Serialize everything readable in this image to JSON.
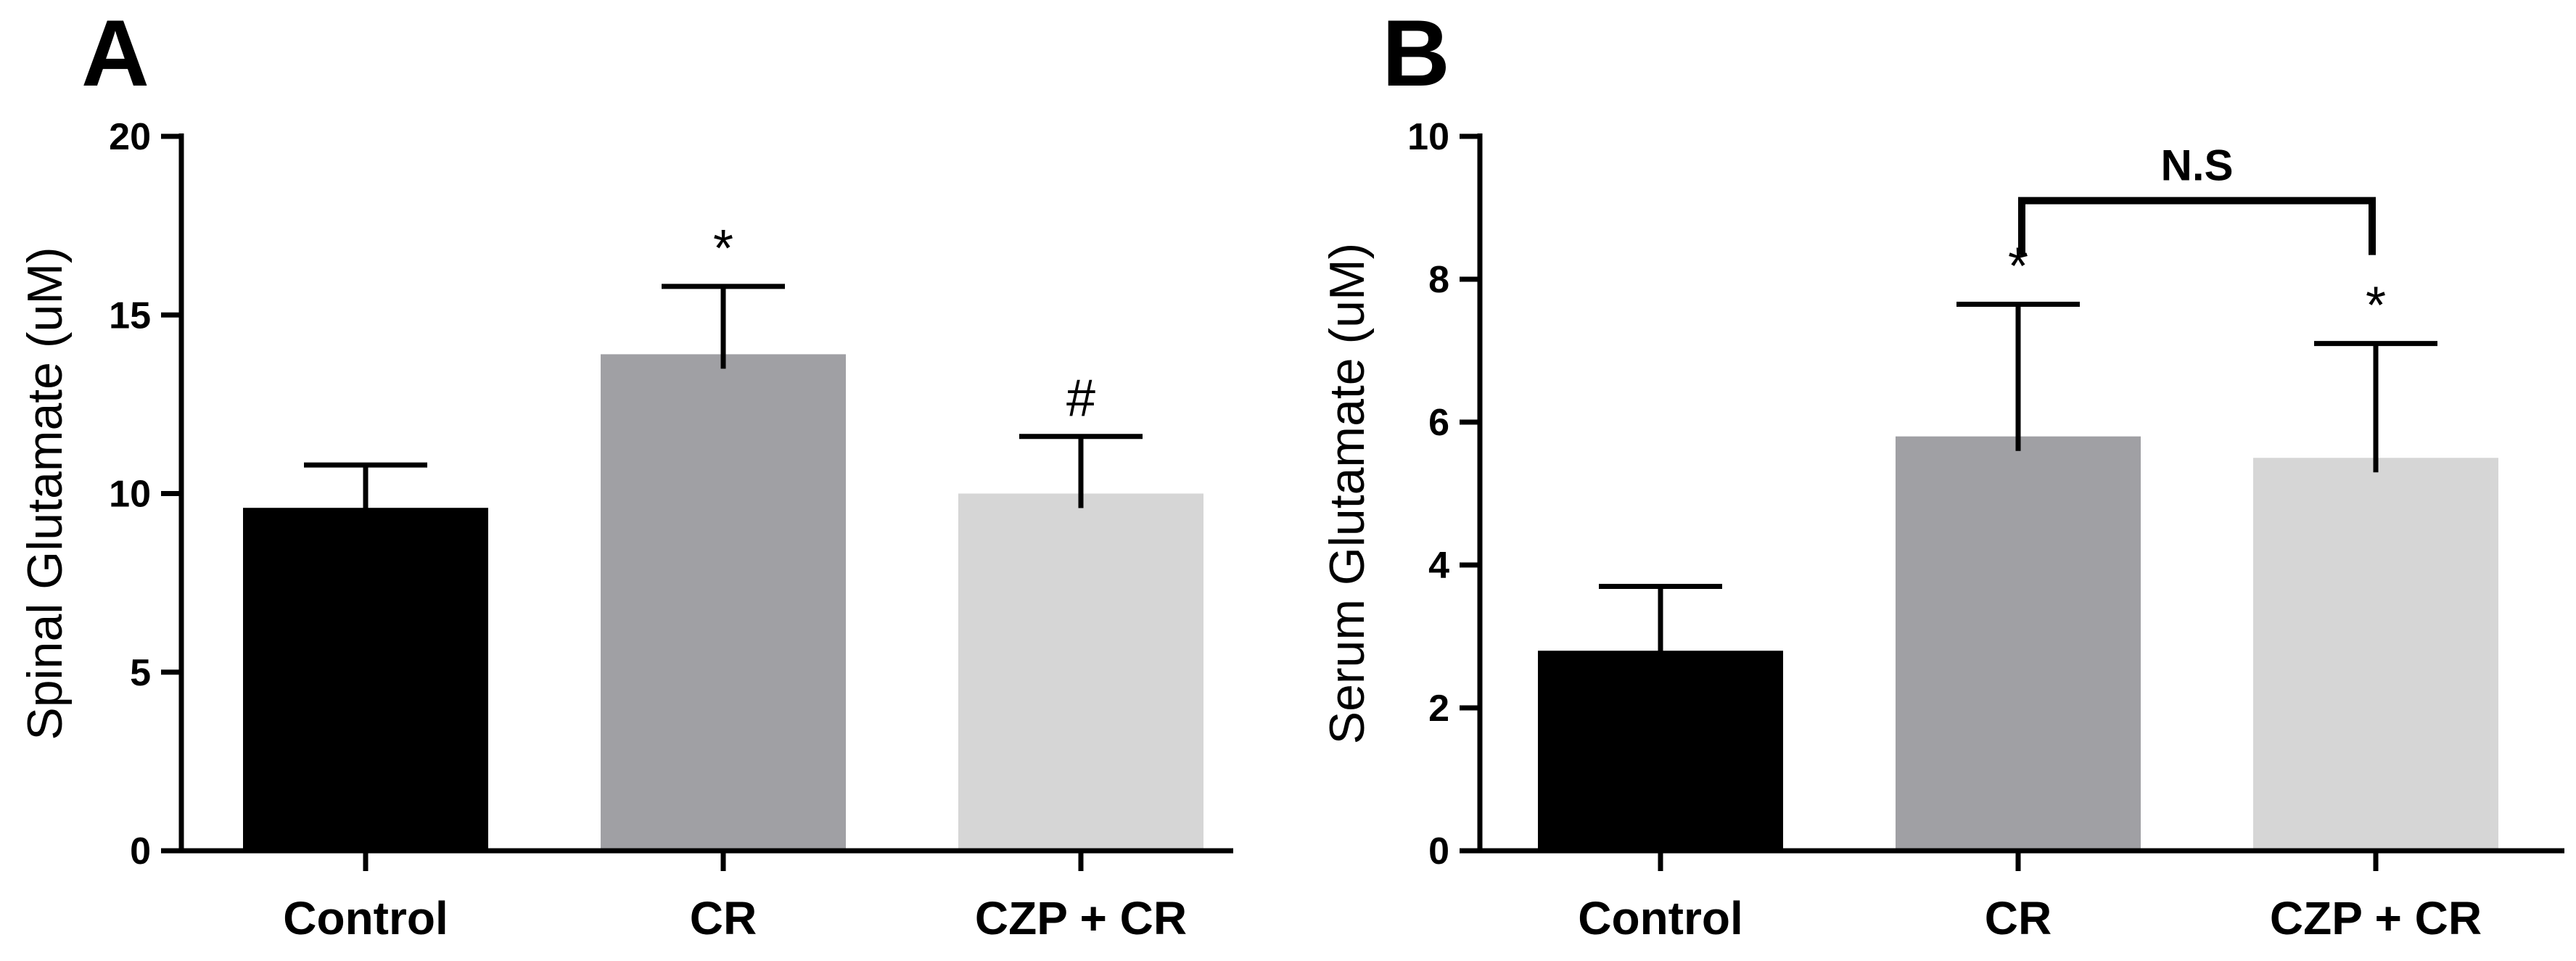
{
  "chart_data": [
    {
      "type": "bar",
      "panel": "A",
      "title": "",
      "xlabel": "",
      "ylabel": "Spinal Glutamate (uM)",
      "ylim": [
        0,
        20
      ],
      "yticks": [
        0,
        5,
        10,
        15,
        20
      ],
      "categories": [
        "Control",
        "CR",
        "CZP + CR"
      ],
      "values": [
        9.6,
        13.9,
        10.0
      ],
      "errors": [
        1.2,
        1.9,
        1.6
      ],
      "colors": [
        "#000000",
        "#a0a0a4",
        "#d6d6d6"
      ],
      "annotations": [
        "",
        "*",
        "#"
      ],
      "bracket": null
    },
    {
      "type": "bar",
      "panel": "B",
      "title": "",
      "xlabel": "",
      "ylabel": "Serum Glutamate (uM)",
      "ylim": [
        0,
        10
      ],
      "yticks": [
        0,
        2,
        4,
        6,
        8,
        10
      ],
      "categories": [
        "Control",
        "CR",
        "CZP + CR"
      ],
      "values": [
        2.8,
        5.8,
        5.5
      ],
      "errors": [
        0.9,
        1.85,
        1.6
      ],
      "colors": [
        "#000000",
        "#a0a0a4",
        "#d6d6d6"
      ],
      "annotations": [
        "",
        "*",
        "*"
      ],
      "bracket": {
        "from": 1,
        "to": 2,
        "label": "N.S",
        "y": 9.1
      }
    }
  ]
}
